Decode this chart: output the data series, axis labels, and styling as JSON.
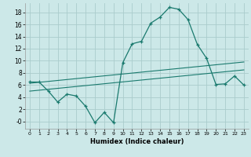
{
  "title": "",
  "xlabel": "Humidex (Indice chaleur)",
  "background_color": "#cce8e8",
  "line_color": "#1a7a6e",
  "grid_color": "#aacccc",
  "x_ticks": [
    0,
    1,
    2,
    3,
    4,
    5,
    6,
    7,
    8,
    9,
    10,
    11,
    12,
    13,
    14,
    15,
    16,
    17,
    18,
    19,
    20,
    21,
    22,
    23
  ],
  "y_ticks": [
    0,
    2,
    4,
    6,
    8,
    10,
    12,
    14,
    16,
    18
  ],
  "y_tick_labels": [
    "-0",
    "2",
    "4",
    "6",
    "8",
    "10",
    "12",
    "14",
    "16",
    "18"
  ],
  "ylim": [
    -1.2,
    19.5
  ],
  "xlim": [
    -0.5,
    23.5
  ],
  "line1_x": [
    0,
    1,
    2,
    3,
    4,
    5,
    6,
    7,
    8,
    9,
    10,
    11,
    12,
    13,
    14,
    15,
    16,
    17,
    18,
    19,
    20,
    21,
    22,
    23
  ],
  "line1_y": [
    6.5,
    6.5,
    5.0,
    3.2,
    4.5,
    4.2,
    2.5,
    -0.2,
    1.5,
    -0.2,
    9.7,
    12.8,
    13.2,
    16.2,
    17.2,
    18.8,
    18.5,
    16.8,
    12.7,
    10.4,
    6.1,
    6.2,
    7.5,
    6.0
  ],
  "line2_x": [
    0,
    23
  ],
  "line2_y": [
    6.3,
    9.8
  ],
  "line3_x": [
    0,
    23
  ],
  "line3_y": [
    5.0,
    8.5
  ]
}
